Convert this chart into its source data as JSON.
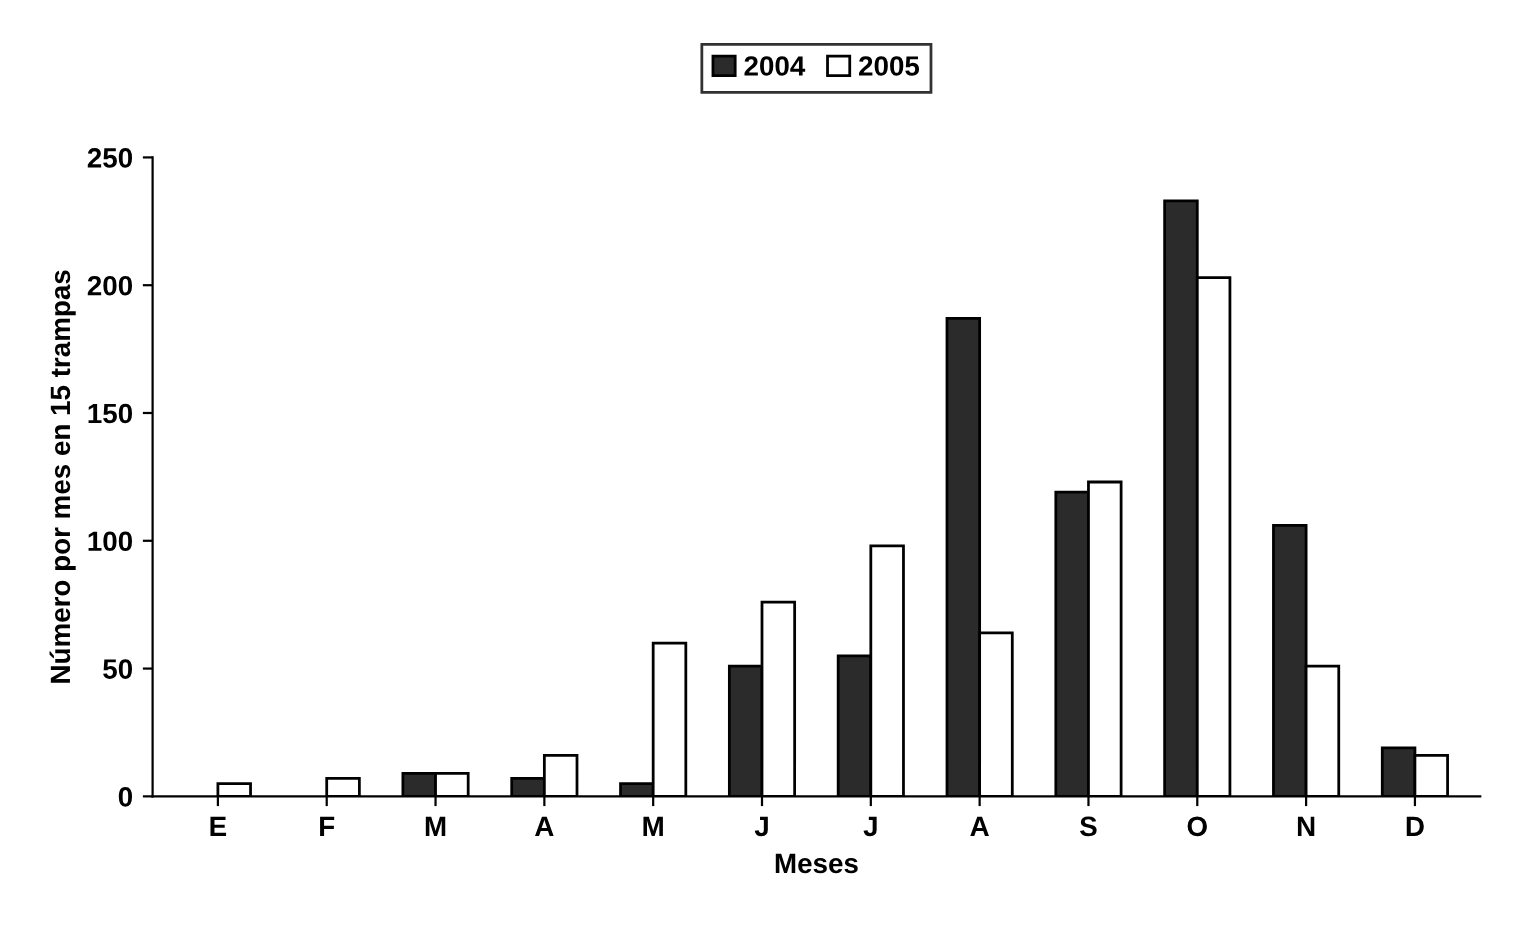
{
  "chart_data": {
    "type": "bar",
    "xlabel": "Meses",
    "ylabel": "Número por mes en 15 trampas",
    "categories": [
      "E",
      "F",
      "M",
      "A",
      "M",
      "J",
      "J",
      "A",
      "S",
      "O",
      "N",
      "D"
    ],
    "series": [
      {
        "name": "2004",
        "color": "#2b2b2b",
        "values": [
          null,
          null,
          9,
          7,
          5,
          51,
          55,
          187,
          119,
          233,
          106,
          19
        ]
      },
      {
        "name": "2005",
        "color": "#ffffff",
        "values": [
          5,
          7,
          9,
          16,
          60,
          76,
          98,
          64,
          123,
          203,
          51,
          16
        ]
      }
    ],
    "ylim": [
      0,
      250
    ],
    "yticks": [
      0,
      50,
      100,
      150,
      200,
      250
    ],
    "grid": false,
    "legend": "top"
  }
}
